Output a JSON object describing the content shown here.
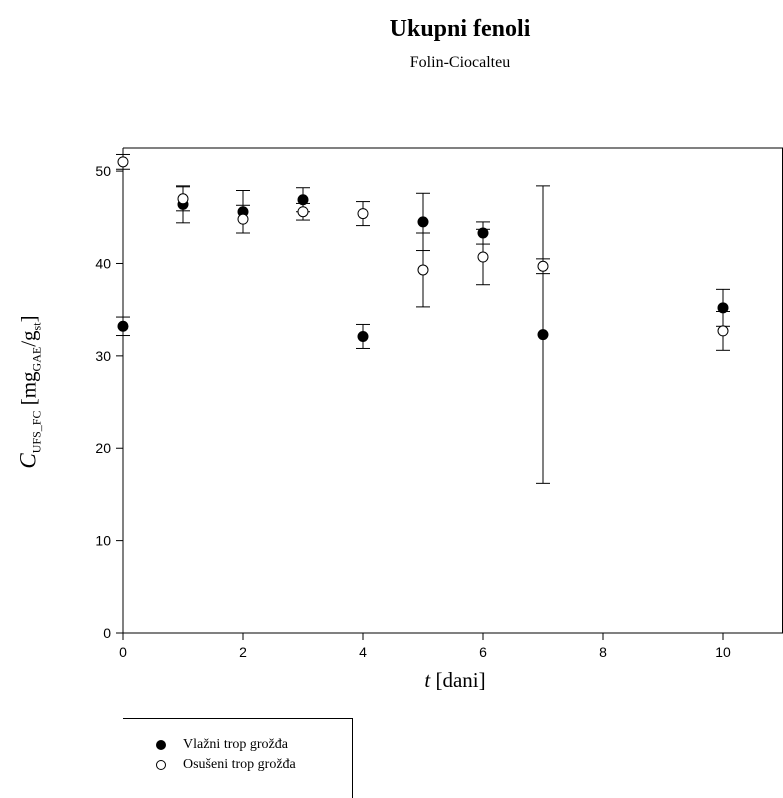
{
  "chart_data": {
    "type": "scatter",
    "title": "Ukupni fenoli",
    "subtitle": "Folin-Ciocalteu",
    "xlabel": {
      "italic": "t",
      "rest": " [dani]"
    },
    "ylabel": {
      "var": "C",
      "var_sub": "UFS_FC",
      "unit_open": " [mg",
      "unit_sub1": "GAE",
      "unit_mid": "/g",
      "unit_sub2": "st",
      "unit_close": "]"
    },
    "xlim": [
      0,
      11
    ],
    "ylim": [
      0,
      52.5
    ],
    "xticks": [
      0,
      2,
      4,
      6,
      8,
      10
    ],
    "xtick_labels": [
      "0",
      "2",
      "4",
      "6",
      "8",
      "10"
    ],
    "yticks": [
      0,
      10,
      20,
      30,
      40,
      50
    ],
    "ytick_labels": [
      "0",
      "10",
      "20",
      "30",
      "40",
      "50"
    ],
    "grid": false,
    "legend_position": "bottom-left",
    "series": [
      {
        "name": "Vlažni trop grožđa",
        "marker": "filled-circle",
        "color": "#000000",
        "x": [
          0,
          1,
          2,
          3,
          4,
          5,
          6,
          7,
          10
        ],
        "y": [
          33.2,
          46.4,
          45.6,
          46.9,
          32.1,
          44.5,
          43.3,
          32.3,
          35.2
        ],
        "err": [
          1.0,
          2.0,
          2.3,
          1.3,
          1.3,
          3.1,
          1.2,
          16.1,
          2.0
        ]
      },
      {
        "name": "Osušeni trop grožđa",
        "marker": "open-circle",
        "color": "#000000",
        "x": [
          0,
          1,
          2,
          3,
          4,
          5,
          6,
          7,
          10
        ],
        "y": [
          51.0,
          47.0,
          44.8,
          45.6,
          45.4,
          39.3,
          40.7,
          39.7,
          32.7
        ],
        "err": [
          0.8,
          1.3,
          1.5,
          0.9,
          1.3,
          4.0,
          3.0,
          0.8,
          2.1
        ]
      }
    ]
  }
}
